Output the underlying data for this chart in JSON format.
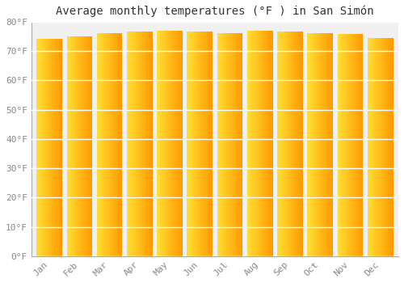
{
  "title": "Average monthly temperatures (°F ) in San Simón",
  "months": [
    "Jan",
    "Feb",
    "Mar",
    "Apr",
    "May",
    "Jun",
    "Jul",
    "Aug",
    "Sep",
    "Oct",
    "Nov",
    "Dec"
  ],
  "values": [
    74.1,
    75.0,
    76.1,
    76.5,
    76.8,
    76.5,
    76.1,
    76.8,
    76.5,
    76.1,
    75.7,
    74.5
  ],
  "bar_color_left": "#FFD700",
  "bar_color_right": "#FFA500",
  "background_color": "#ffffff",
  "plot_bg_color": "#f0f0f0",
  "grid_color": "#ffffff",
  "ylim": [
    0,
    80
  ],
  "ytick_step": 10,
  "title_fontsize": 10,
  "tick_fontsize": 8,
  "bar_width": 0.85
}
